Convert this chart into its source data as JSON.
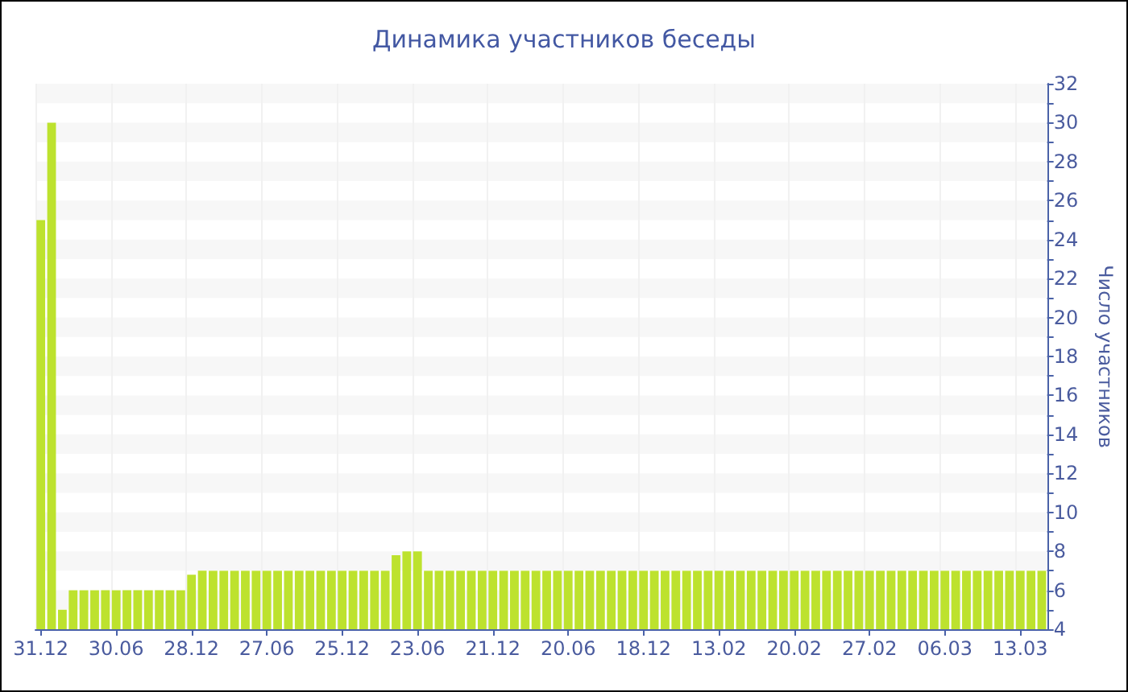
{
  "chart_data": {
    "type": "bar",
    "title": "Динамика участников беседы",
    "ylabel": "Число участников",
    "categories": [
      "31.12",
      null,
      null,
      null,
      null,
      null,
      null,
      "30.06",
      null,
      null,
      null,
      null,
      null,
      null,
      "28.12",
      null,
      null,
      null,
      null,
      null,
      null,
      "27.06",
      null,
      null,
      null,
      null,
      null,
      null,
      "25.12",
      null,
      null,
      null,
      null,
      null,
      null,
      "23.06",
      null,
      null,
      null,
      null,
      null,
      null,
      "21.12",
      null,
      null,
      null,
      null,
      null,
      null,
      "20.06",
      null,
      null,
      null,
      null,
      null,
      null,
      "18.12",
      null,
      null,
      null,
      null,
      null,
      null,
      "13.02",
      null,
      null,
      null,
      null,
      null,
      null,
      "20.02",
      null,
      null,
      null,
      null,
      null,
      null,
      "27.02",
      null,
      null,
      null,
      null,
      null,
      null,
      "06.03",
      null,
      null,
      null,
      null,
      null,
      null,
      "13.03",
      null,
      null
    ],
    "values": [
      25,
      30,
      5,
      6,
      6,
      6,
      6,
      6,
      6,
      6,
      6,
      6,
      6,
      6,
      6.8,
      7,
      7,
      7,
      7,
      7,
      7,
      7,
      7,
      7,
      7,
      7,
      7,
      7,
      7,
      7,
      7,
      7,
      7,
      7.8,
      8,
      8,
      7,
      7,
      7,
      7,
      7,
      7,
      7,
      7,
      7,
      7,
      7,
      7,
      7,
      7,
      7,
      7,
      7,
      7,
      7,
      7,
      7,
      7,
      7,
      7,
      7,
      7,
      7,
      7,
      7,
      7,
      7,
      7,
      7,
      7,
      7,
      7,
      7,
      7,
      7,
      7,
      7,
      7,
      7,
      7,
      7,
      7,
      7,
      7,
      7,
      7,
      7,
      7,
      7,
      7,
      7,
      7,
      7,
      7
    ],
    "color": "#bde22e",
    "ylim": [
      4,
      32
    ],
    "yticks": [
      4,
      {
        "value": 5,
        "label": null
      },
      6,
      {
        "value": 7,
        "label": null
      },
      8,
      {
        "value": 9,
        "label": null
      },
      10,
      {
        "value": 11,
        "label": null
      },
      12,
      {
        "value": 13,
        "label": null
      },
      14,
      {
        "value": 15,
        "label": null
      },
      16,
      {
        "value": 17,
        "label": null
      },
      18,
      {
        "value": 19,
        "label": null
      },
      20,
      {
        "value": 21,
        "label": null
      },
      22,
      {
        "value": 23,
        "label": null
      },
      24,
      {
        "value": 25,
        "label": null
      },
      26,
      {
        "value": 27,
        "label": null
      },
      28,
      {
        "value": 29,
        "label": null
      },
      30,
      {
        "value": 31,
        "label": null
      },
      32
    ],
    "grid": true
  }
}
